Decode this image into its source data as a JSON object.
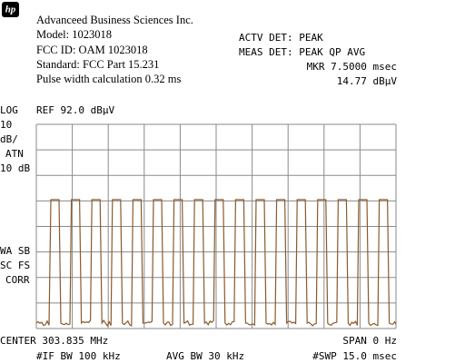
{
  "header": {
    "logo": "hp",
    "company": "Advanceed Business Sciences Inc.",
    "model": "Model: 1023018",
    "fcc_id": "FCC ID: OAM 1023018",
    "standard": "Standard: FCC Part 15.231",
    "pulse_width": "Pulse width calculation 0.32 ms"
  },
  "status": {
    "actv_det": "ACTV DET: PEAK",
    "meas_det": "MEAS DET: PEAK QP AVG",
    "marker_time": "MKR 7.5000 msec",
    "marker_level": "14.77 dBµV"
  },
  "left_labels": {
    "scale": "LOG",
    "db_per_div": "10",
    "db_unit": "dB/",
    "atn": "ATN",
    "atn_value": "10 dB",
    "wa_sb": "WA SB",
    "sc_fs": "SC FS",
    "corr": "CORR"
  },
  "reference": "REF 92.0 dBµV",
  "footer": {
    "center": "CENTER 303.835 MHz",
    "span": "SPAN 0 Hz",
    "if_bw": "#IF BW 100 kHz",
    "avg_bw": "AVG BW 30 kHz",
    "sweep": "#SWP 15.0 msec"
  }
}
